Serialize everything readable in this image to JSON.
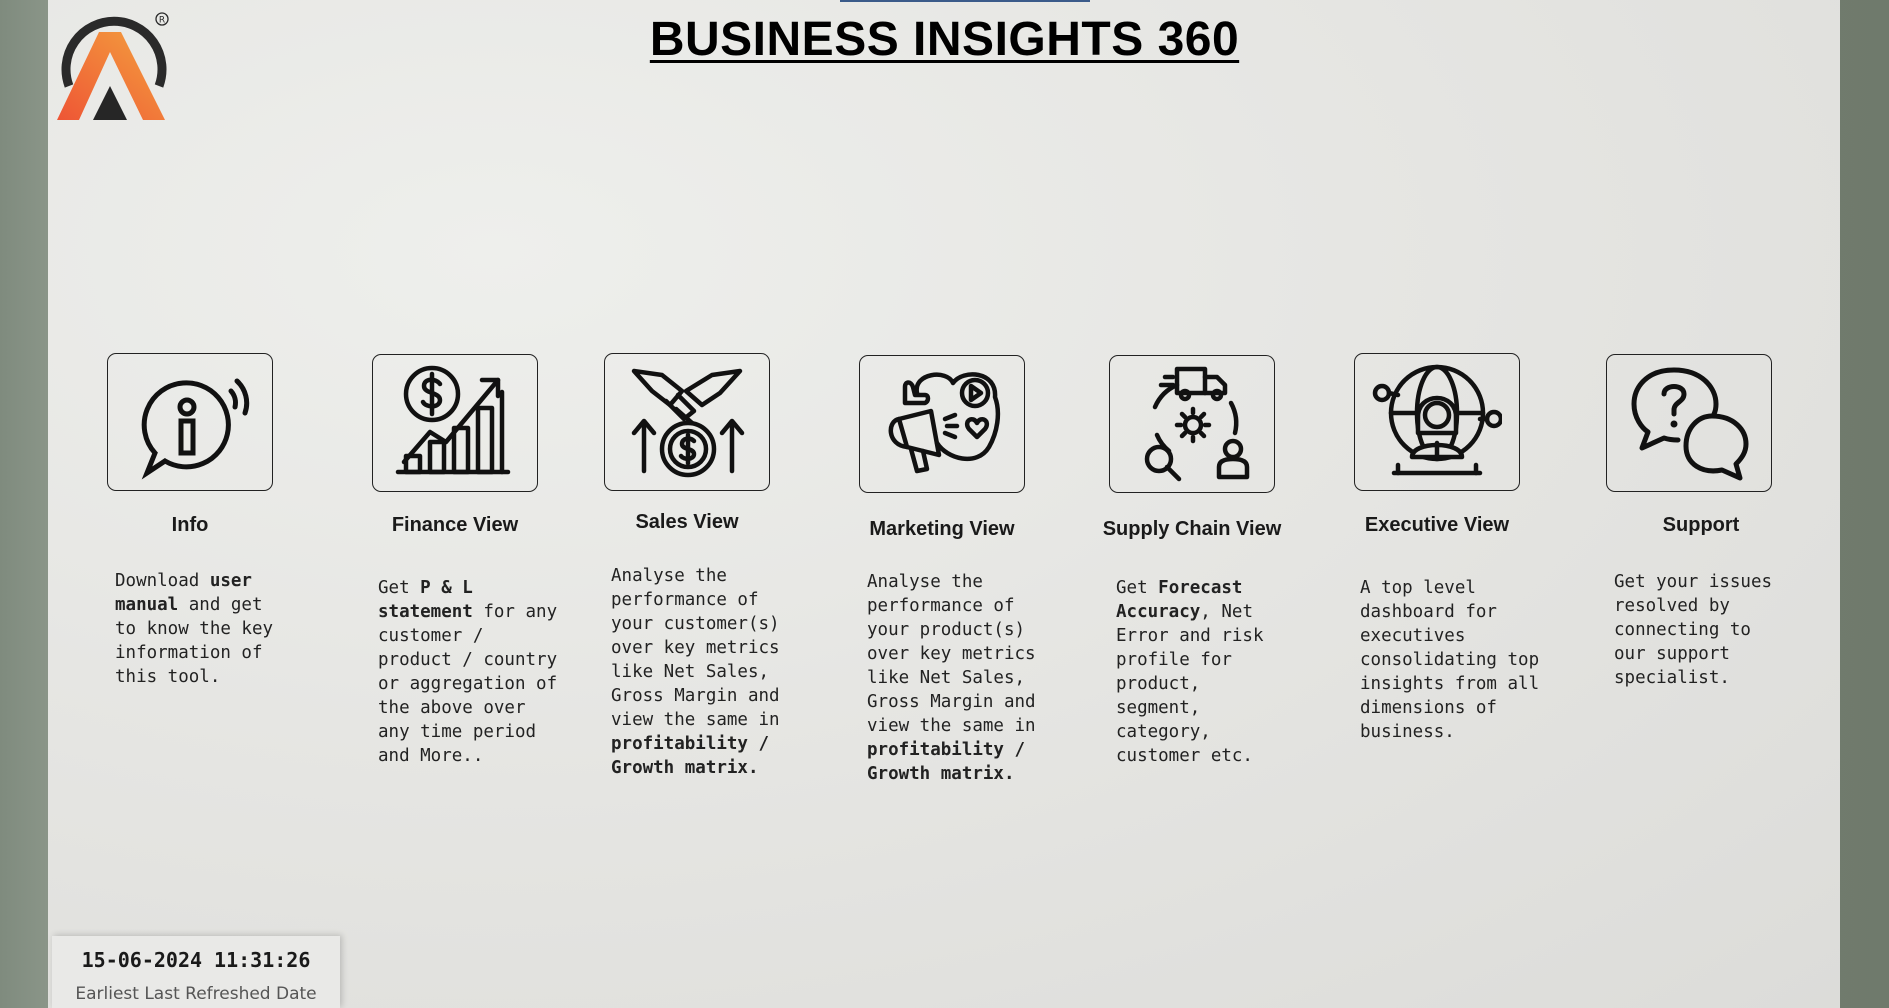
{
  "header": {
    "title": "BUSINESS INSIGHTS 360",
    "registered_mark": "®"
  },
  "colors": {
    "logo_ring": "#2a2a2a",
    "logo_gradient_start": "#f0603a",
    "logo_gradient_end": "#f39a3c"
  },
  "cards": [
    {
      "title": "Info",
      "icon": "info-icon",
      "desc_parts": [
        {
          "text": "Download ",
          "bold": false
        },
        {
          "text": "user\nmanual",
          "bold": true
        },
        {
          "text": " and get\nto know the key\ninformation of\nthis tool.",
          "bold": false
        }
      ]
    },
    {
      "title": "Finance View",
      "icon": "finance-growth-icon",
      "desc_parts": [
        {
          "text": "Get  ",
          "bold": false
        },
        {
          "text": "P & L\nstatement",
          "bold": true
        },
        {
          "text": " for any\ncustomer /\nproduct / country\nor aggregation of\nthe above over\nany time period\nand More..",
          "bold": false
        }
      ]
    },
    {
      "title": "Sales View",
      "icon": "handshake-dollar-icon",
      "desc_parts": [
        {
          "text": "Analyse the\nperformance of\nyour customer(s)\nover key metrics\nlike Net Sales,\nGross Margin and\nview the same in\n",
          "bold": false
        },
        {
          "text": "profitability /\nGrowth matrix.",
          "bold": true
        }
      ]
    },
    {
      "title": "Marketing View",
      "icon": "marketing-megaphone-icon",
      "desc_parts": [
        {
          "text": "Analyse the\nperformance of\nyour product(s)\nover key metrics\nlike Net Sales,\nGross Margin and\nview the same in\n",
          "bold": false
        },
        {
          "text": "profitability /\nGrowth matrix.",
          "bold": true
        }
      ]
    },
    {
      "title": "Supply Chain View",
      "icon": "supply-chain-icon",
      "desc_parts": [
        {
          "text": "Get ",
          "bold": false
        },
        {
          "text": "Forecast\nAccuracy",
          "bold": true
        },
        {
          "text": ", Net\nError and risk\nprofile for\nproduct,\nsegment,\ncategory,\ncustomer etc.",
          "bold": false
        }
      ]
    },
    {
      "title": "Executive View",
      "icon": "executive-globe-icon",
      "desc_parts": [
        {
          "text": "A top level\ndashboard for\nexecutives\nconsolidating top\ninsights from all\ndimensions of\nbusiness.",
          "bold": false
        }
      ]
    },
    {
      "title": "Support",
      "icon": "support-chat-icon",
      "desc_parts": [
        {
          "text": "Get your issues\nresolved by\nconnecting to\nour support\nspecialist.",
          "bold": false
        }
      ]
    }
  ],
  "footer": {
    "refresh_datetime": "15-06-2024 11:31:26",
    "refresh_label": "Earliest Last Refreshed Date"
  }
}
